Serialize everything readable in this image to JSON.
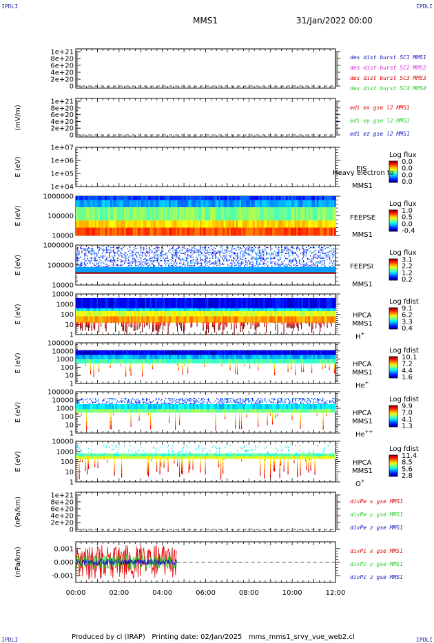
{
  "header": {
    "corner_tl": "IPDLI",
    "corner_tr": "IPDLI",
    "corner_bl": "IPDLI",
    "corner_br": "IPDLI",
    "mission": "MMS1",
    "date": "31/Jan/2022 00:00"
  },
  "footer": {
    "text": "Produced by cl (IRAP)   Printing date: 02/Jan/2025   mms_mms1_srvy_vue_web2.cl"
  },
  "colors": {
    "red": "#e00000",
    "green": "#22cc22",
    "blue": "#1010c0",
    "magenta": "#e020e0"
  },
  "chart_data": [
    {
      "type": "line",
      "ylabel": "",
      "ticks": [
        "1e+21",
        "8e+20",
        "6e+20",
        "4e+20",
        "2e+20",
        "0"
      ],
      "legend": [
        {
          "name": "des dist burst SC1 MMS1",
          "color": "blue"
        },
        {
          "name": "des dist burst SC2 MMS2",
          "color": "magenta"
        },
        {
          "name": "des dist burst SC3 MMS3",
          "color": "red"
        },
        {
          "name": "des dist burst SC4 MMS4",
          "color": "green"
        }
      ],
      "zero_line": true
    },
    {
      "type": "line",
      "ylabel": "(mV/m)",
      "ticks": [
        "1e+21",
        "8e+20",
        "6e+20",
        "4e+20",
        "2e+20",
        "0"
      ],
      "legend": [
        {
          "name": "edi ex gse l2 MMS1",
          "color": "red"
        },
        {
          "name": "edi ey gse l2 MMS1",
          "color": "green"
        },
        {
          "name": "edi ez gse l2 MMS1",
          "color": "blue"
        }
      ],
      "zero_line": true
    },
    {
      "type": "heatmap",
      "ylabel": "E (eV)",
      "ticks": [
        "1e+07",
        "1e+06",
        "1e+05",
        "1e+04"
      ],
      "instrument": [
        "EIS",
        "MMS1"
      ],
      "overlay_text": "Heavy electron to",
      "cb_title": "Log flux",
      "cb_labels": [
        "0.0",
        "0.0",
        "0.0",
        "0.0"
      ],
      "empty": true
    },
    {
      "type": "heatmap",
      "ylabel": "E (eV)",
      "ticks": [
        "1000000",
        "100000",
        "10000"
      ],
      "instrument": [
        "FEEPSE",
        "MMS1"
      ],
      "cb_title": "Log flux",
      "cb_labels": [
        "1.0",
        "0.5",
        "0.0",
        "-0.4"
      ],
      "pattern": "feepse"
    },
    {
      "type": "heatmap",
      "ylabel": "E (eV)",
      "ticks": [
        "1000000",
        "100000",
        "10000"
      ],
      "instrument": [
        "FEEPSI",
        "MMS1"
      ],
      "cb_title": "Log flux",
      "cb_labels": [
        "3.1",
        "2.2",
        "1.2",
        "0.2"
      ],
      "pattern": "feepsi"
    },
    {
      "type": "heatmap",
      "ylabel": "E (eV)",
      "ticks": [
        "10000",
        "1000",
        "100",
        "10",
        "1"
      ],
      "instrument": [
        "HPCA",
        "MMS1"
      ],
      "species": "H",
      "species_sup": "+",
      "cb_title": "Log fdist",
      "cb_labels": [
        "9.1",
        "6.2",
        "3.3",
        "0.4"
      ],
      "pattern": "hplus"
    },
    {
      "type": "heatmap",
      "ylabel": "E (eV)",
      "ticks": [
        "100000",
        "10000",
        "1000",
        "100",
        "10",
        "1"
      ],
      "instrument": [
        "HPCA",
        "MMS1"
      ],
      "species": "He",
      "species_sup": "+",
      "cb_title": "Log fdist",
      "cb_labels": [
        "10.1",
        "7.2",
        "4.4",
        "1.6"
      ],
      "pattern": "heplus"
    },
    {
      "type": "heatmap",
      "ylabel": "E (eV)",
      "ticks": [
        "100000",
        "10000",
        "1000",
        "100",
        "10",
        "1"
      ],
      "instrument": [
        "HPCA",
        "MMS1"
      ],
      "species": "He",
      "species_sup": "++",
      "cb_title": "Log fdist",
      "cb_labels": [
        "9.9",
        "7.0",
        "4.1",
        "1.3"
      ],
      "pattern": "hepp"
    },
    {
      "type": "heatmap",
      "ylabel": "E (eV)",
      "ticks": [
        "10000",
        "1000",
        "100",
        "10",
        "1"
      ],
      "instrument": [
        "HPCA",
        "MMS1"
      ],
      "species": "O",
      "species_sup": "+",
      "cb_title": "Log fdist",
      "cb_labels": [
        "11.4",
        "8.5",
        "5.6",
        "2.8"
      ],
      "pattern": "oplus"
    },
    {
      "type": "line",
      "ylabel": "(nPa/km)",
      "ticks": [
        "1e+21",
        "8e+20",
        "6e+20",
        "4e+20",
        "2e+20",
        "0"
      ],
      "legend": [
        {
          "name": "divPe x gse MMS1",
          "color": "red"
        },
        {
          "name": "divPe y gse MMS1",
          "color": "green"
        },
        {
          "name": "divPe z gse MMS1",
          "color": "blue"
        }
      ],
      "zero_line": true
    },
    {
      "type": "line",
      "ylabel": "(nPa/km)",
      "ticks": [
        "0.001",
        "0.000",
        "-0.001"
      ],
      "ylim": [
        -0.0015,
        0.0015
      ],
      "legend": [
        {
          "name": "divPi x gse MMS1",
          "color": "red"
        },
        {
          "name": "divPi y gse MMS1",
          "color": "green"
        },
        {
          "name": "divPi z gse MMS1",
          "color": "blue"
        }
      ],
      "zero_line": true,
      "data_end": "04:40"
    }
  ],
  "xaxis": {
    "ticks": [
      "00:00",
      "02:00",
      "04:00",
      "06:00",
      "08:00",
      "10:00",
      "12:00"
    ],
    "xlim": [
      "00:00",
      "12:00"
    ]
  }
}
